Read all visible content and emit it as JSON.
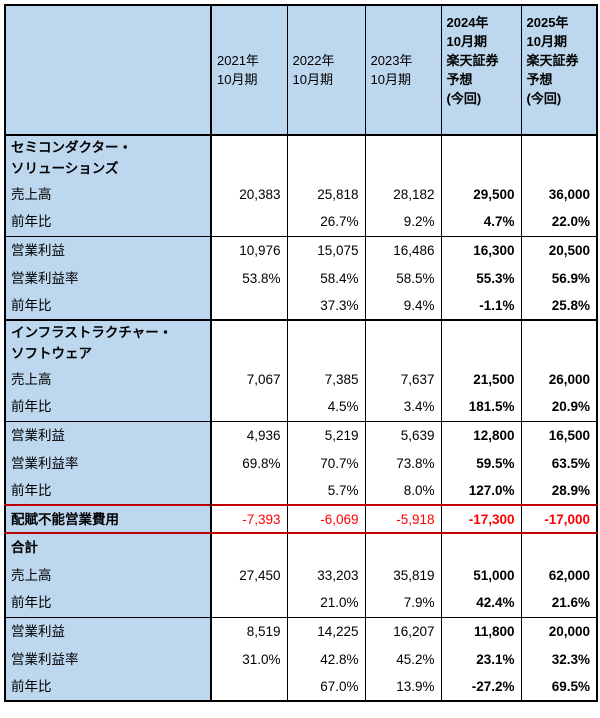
{
  "chart_data": {
    "type": "table",
    "header": {
      "corner": "",
      "columns": [
        {
          "label": "2021年\n10月期",
          "forecast": false
        },
        {
          "label": "2022年\n10月期",
          "forecast": false
        },
        {
          "label": "2023年\n10月期",
          "forecast": false
        },
        {
          "label": "2024年\n10月期\n楽天証券\n予想\n(今回)",
          "forecast": true
        },
        {
          "label": "2025年\n10月期\n楽天証券\n予想\n(今回)",
          "forecast": true
        }
      ]
    },
    "rows": [
      {
        "type": "section",
        "label": "セミコンダクター・\nソリューションズ",
        "values": [
          "",
          "",
          "",
          "",
          ""
        ]
      },
      {
        "type": "data",
        "label": "売上高",
        "values": [
          "20,383",
          "25,818",
          "28,182",
          "29,500",
          "36,000"
        ]
      },
      {
        "type": "data",
        "label": "前年比",
        "values": [
          "",
          "26.7%",
          "9.2%",
          "4.7%",
          "22.0%"
        ]
      },
      {
        "type": "data",
        "label": "営業利益",
        "divider": true,
        "values": [
          "10,976",
          "15,075",
          "16,486",
          "16,300",
          "20,500"
        ]
      },
      {
        "type": "data",
        "label": "営業利益率",
        "values": [
          "53.8%",
          "58.4%",
          "58.5%",
          "55.3%",
          "56.9%"
        ]
      },
      {
        "type": "data",
        "label": "前年比",
        "values": [
          "",
          "37.3%",
          "9.4%",
          "-1.1%",
          "25.8%"
        ]
      },
      {
        "type": "section",
        "label": "インフラストラクチャー・\nソフトウェア",
        "section_start": true,
        "values": [
          "",
          "",
          "",
          "",
          ""
        ]
      },
      {
        "type": "data",
        "label": "売上高",
        "values": [
          "7,067",
          "7,385",
          "7,637",
          "21,500",
          "26,000"
        ]
      },
      {
        "type": "data",
        "label": "前年比",
        "values": [
          "",
          "4.5%",
          "3.4%",
          "181.5%",
          "20.9%"
        ]
      },
      {
        "type": "data",
        "label": "営業利益",
        "divider": true,
        "values": [
          "4,936",
          "5,219",
          "5,639",
          "12,800",
          "16,500"
        ]
      },
      {
        "type": "data",
        "label": "営業利益率",
        "values": [
          "69.8%",
          "70.7%",
          "73.8%",
          "59.5%",
          "63.5%"
        ]
      },
      {
        "type": "data",
        "label": "前年比",
        "values": [
          "",
          "5.7%",
          "8.0%",
          "127.0%",
          "28.9%"
        ]
      },
      {
        "type": "red",
        "label": "配賦不能営業費用",
        "values": [
          "-7,393",
          "-6,069",
          "-5,918",
          "-17,300",
          "-17,000"
        ]
      },
      {
        "type": "section",
        "label": "合計",
        "values": [
          "",
          "",
          "",
          "",
          ""
        ]
      },
      {
        "type": "data",
        "label": "売上高",
        "values": [
          "27,450",
          "33,203",
          "35,819",
          "51,000",
          "62,000"
        ]
      },
      {
        "type": "data",
        "label": "前年比",
        "values": [
          "",
          "21.0%",
          "7.9%",
          "42.4%",
          "21.6%"
        ]
      },
      {
        "type": "data",
        "label": "営業利益",
        "divider": true,
        "values": [
          "8,519",
          "14,225",
          "16,207",
          "11,800",
          "20,000"
        ]
      },
      {
        "type": "data",
        "label": "営業利益率",
        "values": [
          "31.0%",
          "42.8%",
          "45.2%",
          "23.1%",
          "32.3%"
        ]
      },
      {
        "type": "data",
        "label": "前年比",
        "values": [
          "",
          "67.0%",
          "13.9%",
          "-27.2%",
          "69.5%"
        ]
      }
    ]
  },
  "colors": {
    "header_label_bg": "#BDD7EE",
    "negative_red_text": "#FF0000",
    "red_row_border": "#C00000",
    "grid_border": "#000000"
  }
}
